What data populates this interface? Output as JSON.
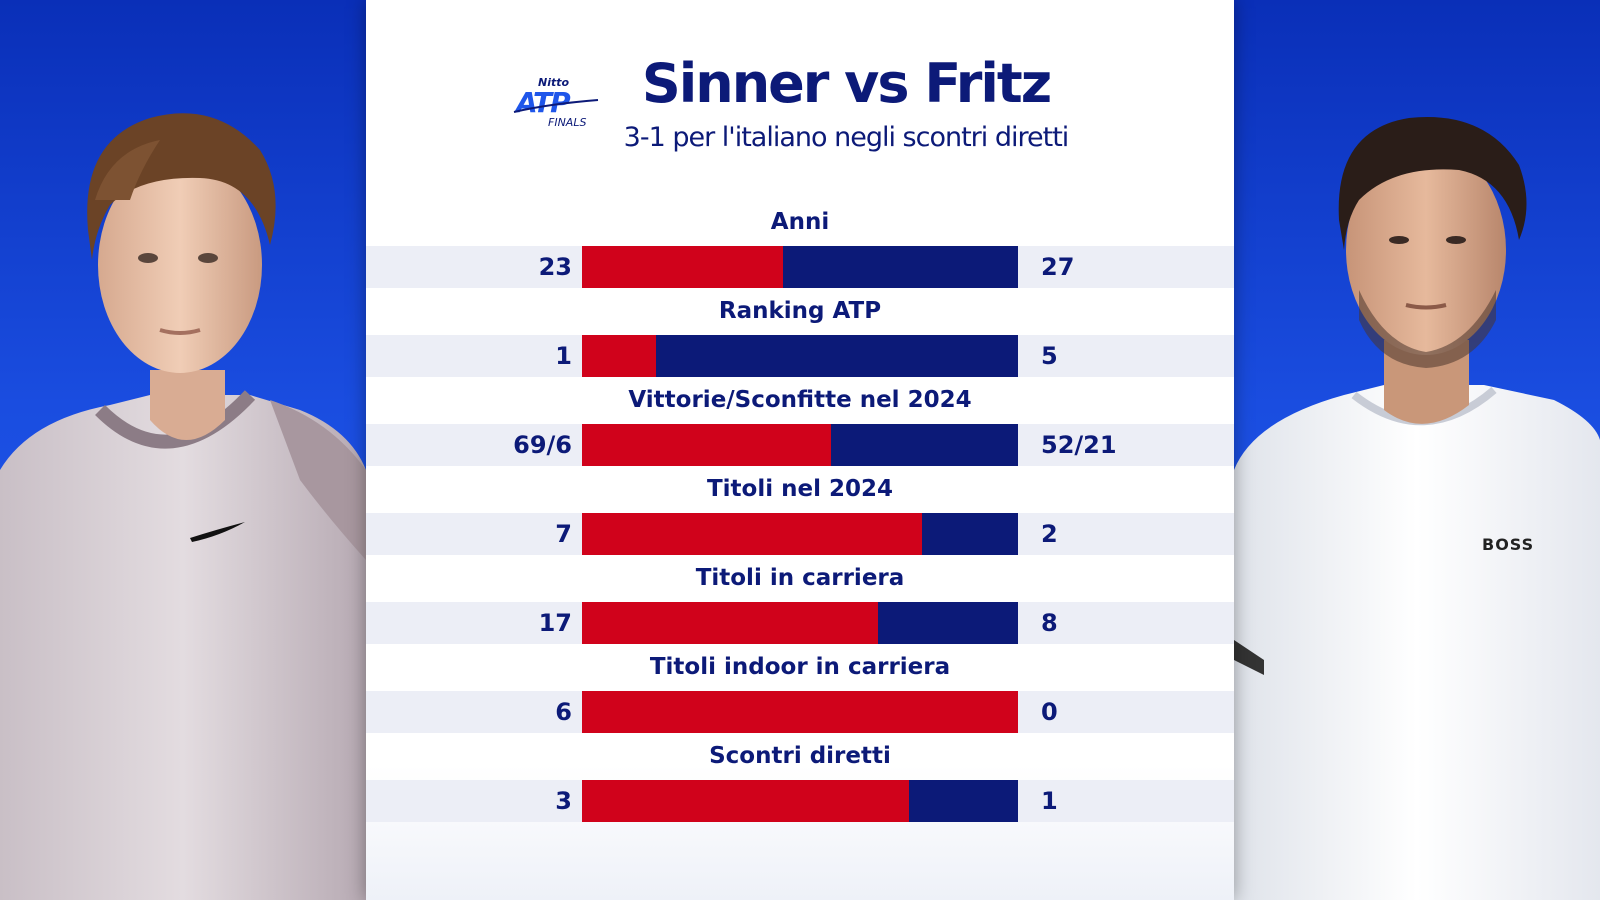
{
  "colors": {
    "sinner": "#d0021b",
    "fritz": "#0c1a78",
    "text": "#0c1a78"
  },
  "header": {
    "logo_lines": [
      "Nitto",
      "ATP",
      "FINALS"
    ],
    "title": "Sinner vs Fritz",
    "subtitle": "3-1 per l'italiano negli scontri diretti"
  },
  "players": {
    "left": {
      "shirt_logo": ""
    },
    "right": {
      "shirt_logo": "BOSS"
    }
  },
  "chart_data": {
    "type": "bar",
    "title": "Sinner vs Fritz",
    "subtitle": "3-1 per l'italiano negli scontri diretti",
    "categories": [
      "Anni",
      "Ranking ATP",
      "Vittorie/Sconfitte nel 2024",
      "Titoli nel 2024",
      "Titoli in carriera",
      "Titoli indoor in carriera",
      "Scontri diretti"
    ],
    "left_labels": [
      "23",
      "1",
      "69/6",
      "7",
      "17",
      "6",
      "3"
    ],
    "right_labels": [
      "27",
      "5",
      "52/21",
      "2",
      "8",
      "0",
      "1"
    ],
    "left_share": [
      0.46,
      0.17,
      0.57,
      0.78,
      0.68,
      1.0,
      0.75
    ]
  }
}
